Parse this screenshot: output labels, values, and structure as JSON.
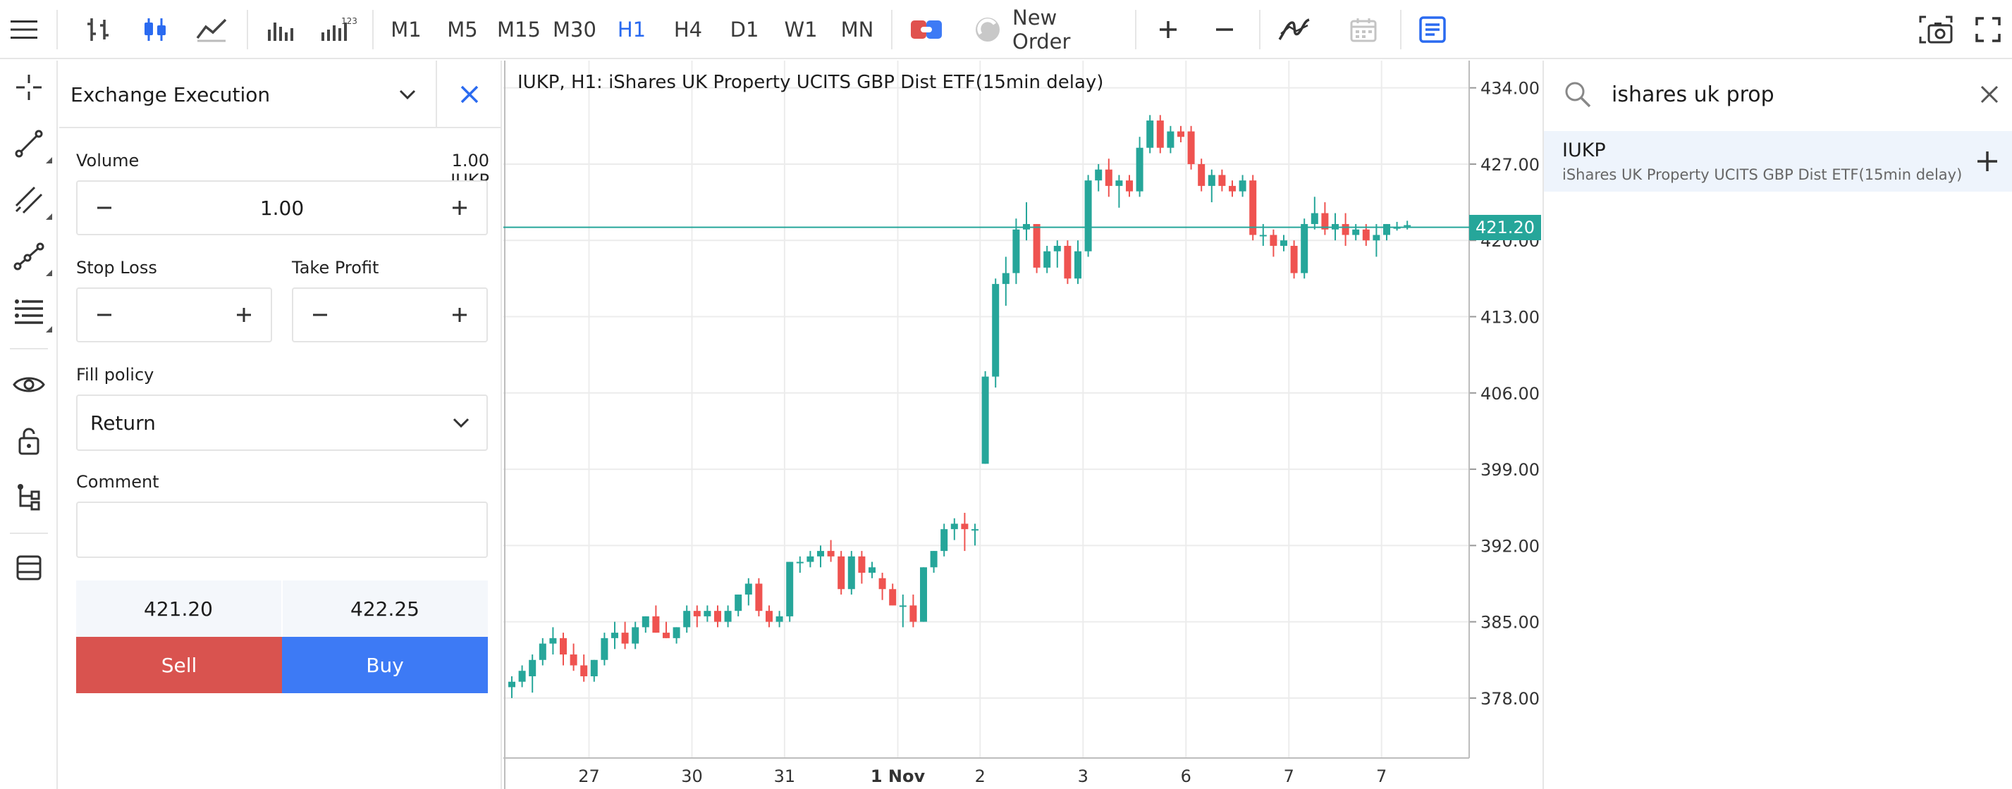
{
  "colors": {
    "bull": "#26a69a",
    "bear": "#ef5350",
    "accent": "#2a6af0",
    "sell": "#d9534f",
    "buy": "#3d7af5",
    "grid": "#ececec"
  },
  "toolbar": {
    "timeframes": [
      "M1",
      "M5",
      "M15",
      "M30",
      "H1",
      "H4",
      "D1",
      "W1",
      "MN"
    ],
    "active_timeframe": "H1",
    "new_order_label": "New Order",
    "icons": [
      "menu-icon",
      "bar-chart-icon",
      "candlestick-icon",
      "line-chart-icon",
      "volumes-icon",
      "tick-volumes-icon",
      "one-click-trading-icon",
      "algo-trading-icon",
      "zoom-in-icon",
      "zoom-out-icon",
      "indicators-icon",
      "calendar-icon",
      "notes-icon",
      "screenshot-icon",
      "fullscreen-icon"
    ]
  },
  "tools": {
    "icons": [
      "crosshair-icon",
      "trend-line-icon",
      "channel-icon",
      "polyline-icon",
      "fibonacci-icon",
      "eye-icon",
      "lock-icon",
      "object-tree-icon",
      "layers-icon"
    ]
  },
  "order": {
    "execution_type": "Exchange Execution",
    "volume_label": "Volume",
    "volume_hint": "1.00 IUKP",
    "volume_value": "1.00",
    "stop_loss_label": "Stop Loss",
    "stop_loss_value": "",
    "take_profit_label": "Take Profit",
    "take_profit_value": "",
    "fill_policy_label": "Fill policy",
    "fill_policy_value": "Return",
    "comment_label": "Comment",
    "comment_value": "",
    "bid": "421.20",
    "ask": "422.25",
    "sell_label": "Sell",
    "buy_label": "Buy"
  },
  "chart_data": {
    "type": "candlestick",
    "title": "IUKP, H1: iShares UK Property UCITS GBP Dist ETF(15min delay)",
    "current_price": 421.2,
    "current_price_label": "421.20",
    "ylim": [
      372.5,
      436.5
    ],
    "y_ticks": [
      "434.00",
      "427.00",
      "420.00",
      "413.00",
      "406.00",
      "399.00",
      "392.00",
      "385.00",
      "378.00"
    ],
    "y_tick_values": [
      434,
      427,
      420,
      413,
      406,
      399,
      392,
      385,
      378
    ],
    "x_ticks": [
      {
        "label": "27",
        "bar": 7.5
      },
      {
        "label": "30",
        "bar": 17.5
      },
      {
        "label": "31",
        "bar": 26.5
      },
      {
        "label": "1 Nov",
        "bar": 37.5,
        "bold": true
      },
      {
        "label": "2",
        "bar": 45.5
      },
      {
        "label": "3",
        "bar": 55.5
      },
      {
        "label": "6",
        "bar": 65.5
      },
      {
        "label": "7",
        "bar": 75.5
      },
      {
        "label": "7",
        "bar": 84.5
      }
    ],
    "candles": [
      [
        379,
        380,
        378,
        379.5
      ],
      [
        379.5,
        381,
        379,
        380.5
      ],
      [
        380,
        382,
        378.5,
        381.5
      ],
      [
        381.5,
        383.5,
        381,
        383
      ],
      [
        383,
        384.5,
        382,
        383.5
      ],
      [
        383.5,
        384,
        381,
        382
      ],
      [
        382,
        383,
        380.5,
        381
      ],
      [
        381,
        382,
        379.5,
        380
      ],
      [
        380,
        381.5,
        379.5,
        381.5
      ],
      [
        381.5,
        384,
        381,
        383.5
      ],
      [
        383.5,
        385,
        382.5,
        384
      ],
      [
        384,
        385,
        382.5,
        383
      ],
      [
        383,
        385,
        382.5,
        384.5
      ],
      [
        384.5,
        385.5,
        384,
        385.5
      ],
      [
        385.5,
        386.5,
        384,
        384
      ],
      [
        384,
        385,
        383.5,
        383.5
      ],
      [
        383.5,
        384.5,
        383,
        384.5
      ],
      [
        384.5,
        386.5,
        384,
        386
      ],
      [
        386,
        386.5,
        384.5,
        385.5
      ],
      [
        385.5,
        386.5,
        385,
        386
      ],
      [
        386,
        386.5,
        384.5,
        385
      ],
      [
        385,
        386.5,
        384.5,
        386
      ],
      [
        386,
        387.5,
        385.5,
        387.5
      ],
      [
        387.5,
        389,
        386.5,
        388.5
      ],
      [
        388.5,
        389,
        385.5,
        386
      ],
      [
        386,
        386.5,
        384.5,
        385
      ],
      [
        385,
        386,
        384.5,
        385.5
      ],
      [
        385.5,
        390.5,
        385,
        390.5
      ],
      [
        390.5,
        391,
        389.5,
        390.5
      ],
      [
        390.5,
        391.5,
        390,
        391
      ],
      [
        391,
        392,
        390,
        391.5
      ],
      [
        391.5,
        392.5,
        390.5,
        391
      ],
      [
        391,
        391.5,
        387.5,
        388
      ],
      [
        388,
        391.5,
        387.5,
        391
      ],
      [
        391,
        391.5,
        388.5,
        389.5
      ],
      [
        389.5,
        390.5,
        389,
        390
      ],
      [
        389,
        389.5,
        387,
        388
      ],
      [
        388,
        388.5,
        386.5,
        386.5
      ],
      [
        386.5,
        387.5,
        384.5,
        386.5
      ],
      [
        386.5,
        387.5,
        384.5,
        385
      ],
      [
        385,
        390,
        385,
        390
      ],
      [
        390,
        391.5,
        389.5,
        391.5
      ],
      [
        391.5,
        394,
        391,
        393.5
      ],
      [
        393.5,
        394.5,
        392.5,
        394
      ],
      [
        394,
        395,
        391.5,
        393.5
      ],
      [
        393.5,
        394,
        392,
        393.5
      ],
      [
        399.5,
        408,
        399.5,
        407.5
      ],
      [
        407.5,
        416.5,
        406.5,
        416
      ],
      [
        416,
        418.5,
        414,
        417
      ],
      [
        417,
        422,
        416,
        421
      ],
      [
        421,
        423.5,
        420,
        421.5
      ],
      [
        421.5,
        421.5,
        417,
        417.5
      ],
      [
        417.5,
        419.5,
        417,
        419
      ],
      [
        419,
        420,
        417.5,
        419.5
      ],
      [
        419.5,
        420,
        416,
        416.5
      ],
      [
        416.5,
        420,
        416,
        419
      ],
      [
        419,
        426,
        418.5,
        425.5
      ],
      [
        425.5,
        427,
        424.5,
        426.5
      ],
      [
        426.5,
        427.5,
        424,
        425
      ],
      [
        425,
        426,
        423,
        425.5
      ],
      [
        425.5,
        426,
        424,
        424.5
      ],
      [
        424.5,
        429.5,
        424,
        428.5
      ],
      [
        428.5,
        431.5,
        428,
        431
      ],
      [
        431,
        431.5,
        428,
        428.5
      ],
      [
        428.5,
        430.5,
        428,
        430
      ],
      [
        430,
        430.5,
        429,
        429.5
      ],
      [
        430,
        430.5,
        426.5,
        427
      ],
      [
        427,
        427.5,
        424.5,
        425
      ],
      [
        425,
        426.5,
        423.5,
        426
      ],
      [
        426,
        426.5,
        424.5,
        425
      ],
      [
        425,
        425.5,
        424,
        424.5
      ],
      [
        424.5,
        426,
        424,
        425.5
      ],
      [
        425.5,
        426,
        420,
        420.5
      ],
      [
        420.5,
        421.5,
        419.5,
        420.5
      ],
      [
        420.5,
        421,
        418.5,
        419.5
      ],
      [
        419.5,
        420.5,
        419,
        420
      ],
      [
        419.5,
        420,
        416.5,
        417
      ],
      [
        417,
        422,
        416.5,
        421.5
      ],
      [
        421.5,
        424,
        421,
        422.5
      ],
      [
        422.5,
        423.5,
        420.5,
        421
      ],
      [
        421,
        422.5,
        420,
        421.5
      ],
      [
        421.5,
        422.5,
        419.5,
        420.5
      ],
      [
        420.5,
        421.5,
        420,
        421
      ],
      [
        421,
        421.5,
        419.5,
        420
      ],
      [
        420,
        421.5,
        418.5,
        420.5
      ],
      [
        420.5,
        421.5,
        420,
        421.5
      ],
      [
        421.2,
        421.7,
        420.9,
        421.2
      ],
      [
        421.3,
        421.8,
        421,
        421.4
      ]
    ]
  },
  "search": {
    "query": "ishares uk prop",
    "results": [
      {
        "symbol": "IUKP",
        "description": "iShares UK Property UCITS GBP Dist ETF(15min delay)"
      }
    ]
  }
}
